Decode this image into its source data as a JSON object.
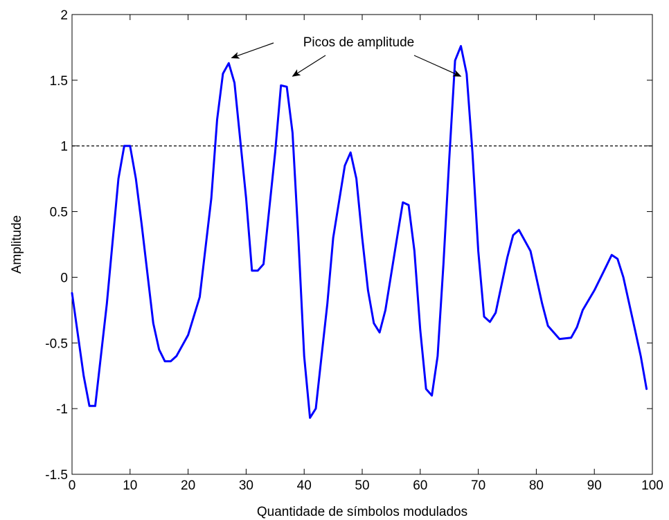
{
  "chart_data": {
    "type": "line",
    "title": "",
    "xlabel": "Quantidade de símbolos modulados",
    "ylabel": "Amplitude",
    "xlim": [
      0,
      100
    ],
    "ylim": [
      -1.5,
      2
    ],
    "xticks": [
      0,
      10,
      20,
      30,
      40,
      50,
      60,
      70,
      80,
      90,
      100
    ],
    "yticks": [
      -1.5,
      -1,
      -0.5,
      0,
      0.5,
      1,
      1.5,
      2
    ],
    "xtick_labels": [
      "0",
      "10",
      "20",
      "30",
      "40",
      "50",
      "60",
      "70",
      "80",
      "90",
      "100"
    ],
    "ytick_labels": [
      "-1.5",
      "-1",
      "-0.5",
      "0",
      "0.5",
      "1",
      "1.5",
      "2"
    ],
    "grid": false,
    "series": [
      {
        "color": "#0000ff",
        "x": [
          0,
          2,
          3,
          4,
          6,
          8,
          9,
          10,
          11,
          12,
          14,
          15,
          16,
          17,
          18,
          20,
          22,
          24,
          25,
          26,
          27,
          28,
          30,
          31,
          32,
          33,
          35,
          36,
          37,
          38,
          39,
          40,
          41,
          42,
          43,
          44,
          45,
          47,
          48,
          49,
          50,
          51,
          52,
          53,
          54,
          56,
          57,
          58,
          59,
          60,
          61,
          62,
          63,
          64,
          65,
          66,
          67,
          68,
          69,
          70,
          71,
          72,
          73,
          75,
          76,
          77,
          79,
          81,
          82,
          84,
          86,
          87,
          88,
          90,
          92,
          93,
          94,
          95,
          97,
          98,
          99
        ],
        "y": [
          -0.12,
          -0.75,
          -0.98,
          -0.98,
          -0.2,
          0.75,
          1.0,
          1.0,
          0.75,
          0.4,
          -0.35,
          -0.55,
          -0.64,
          -0.64,
          -0.6,
          -0.44,
          -0.15,
          0.6,
          1.2,
          1.55,
          1.63,
          1.48,
          0.6,
          0.05,
          0.05,
          0.1,
          0.95,
          1.46,
          1.45,
          1.1,
          0.3,
          -0.6,
          -1.07,
          -1.0,
          -0.6,
          -0.2,
          0.3,
          0.85,
          0.95,
          0.75,
          0.3,
          -0.1,
          -0.35,
          -0.42,
          -0.25,
          0.3,
          0.57,
          0.55,
          0.2,
          -0.4,
          -0.85,
          -0.9,
          -0.6,
          0.1,
          0.9,
          1.65,
          1.76,
          1.55,
          0.95,
          0.2,
          -0.3,
          -0.34,
          -0.27,
          0.15,
          0.32,
          0.36,
          0.2,
          -0.2,
          -0.37,
          -0.47,
          -0.46,
          -0.38,
          -0.25,
          -0.1,
          0.08,
          0.17,
          0.14,
          0.0,
          -0.4,
          -0.6,
          -0.85
        ],
        "x_fix_note": ""
      }
    ],
    "reference_lines": [
      {
        "y": 1,
        "style": "dashed",
        "color": "#000000"
      }
    ],
    "annotations": [
      {
        "text": "Picos de amplitude",
        "arrows_to": [
          [
            27.5,
            1.67
          ],
          [
            38,
            1.53
          ],
          [
            67,
            1.53
          ]
        ]
      }
    ]
  }
}
